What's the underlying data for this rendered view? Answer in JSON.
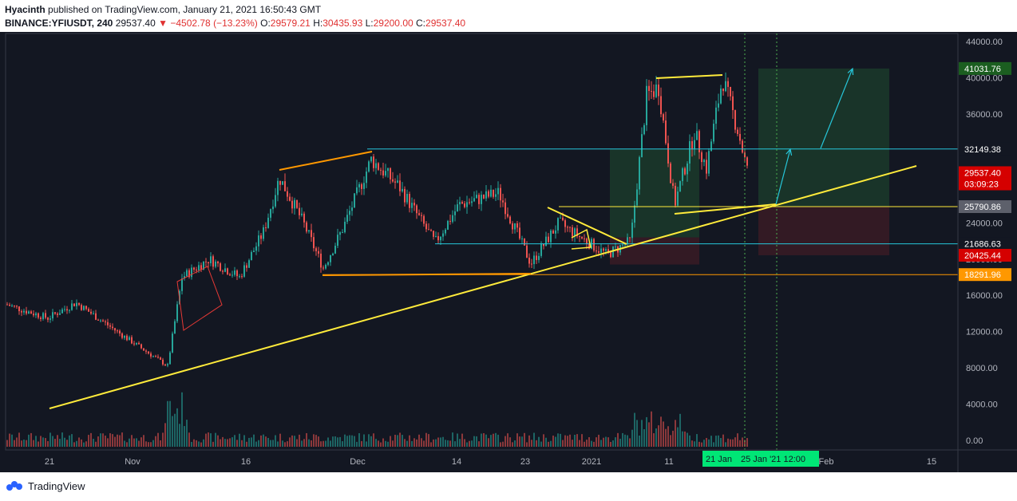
{
  "header": {
    "author": "Hyacinth",
    "published": "published on TradingView.com, January 21, 2021 16:50:43 GMT",
    "symbol": "BINANCE:YFIUSDT, 240",
    "last": "29537.40",
    "change_arrow": "▼",
    "change": "−4502.78 (−13.23%)",
    "open_label": "O:",
    "open": "29579.21",
    "high_label": "H:",
    "high": "30435.93",
    "low_label": "L:",
    "low": "29200.00",
    "close_label": "C:",
    "close": "29537.40"
  },
  "chart_data": {
    "type": "candlestick",
    "symbol": "BINANCE:YFIUSDT",
    "interval": "240",
    "x_ticks": [
      "21",
      "Nov",
      "16",
      "Dec",
      "14",
      "23",
      "2021",
      "11",
      "Feb",
      "15"
    ],
    "y_ticks": [
      44000,
      40000,
      36000,
      32000,
      28000,
      24000,
      20000,
      16000,
      12000,
      8000,
      4000,
      0
    ],
    "y_tick_labels": [
      "44000.00",
      "40000.00",
      "36000.00",
      "32000.00",
      "28000.00",
      "24000.00",
      "20000.00",
      "16000.00",
      "12000.00",
      "8000.00",
      "4000.00",
      "0.00"
    ],
    "ylim": [
      -700,
      46000
    ],
    "horizontal_levels": [
      32149.38,
      21686.63,
      18291.96,
      25790.86
    ],
    "price_labels": [
      {
        "text": "41031.76",
        "value": 41031.76,
        "role": "target"
      },
      {
        "text": "32149.38",
        "value": 32149.38,
        "role": "level"
      },
      {
        "text": "29537.40",
        "value": 29537.4,
        "role": "last-price"
      },
      {
        "text": "03:09:23",
        "value": 28300,
        "role": "countdown"
      },
      {
        "text": "25790.86",
        "value": 25790.86,
        "role": "entry"
      },
      {
        "text": "21686.63",
        "value": 21686.63,
        "role": "level"
      },
      {
        "text": "20425.44",
        "value": 20425.44,
        "role": "stop"
      },
      {
        "text": "18291.96",
        "value": 18291.96,
        "role": "level"
      }
    ],
    "time_labels": [
      "21 Jan",
      "25 Jan '21   12:00"
    ],
    "grid": false
  },
  "footer": {
    "brand": "TradingView"
  },
  "colors": {
    "bg": "#131722",
    "up": "#26a69a",
    "down": "#ef5350",
    "trendline": "#ffeb3b",
    "orange": "#ff9800",
    "cyan": "#26c6da",
    "profit": "#1b3a2a",
    "loss": "#3a1b24"
  }
}
